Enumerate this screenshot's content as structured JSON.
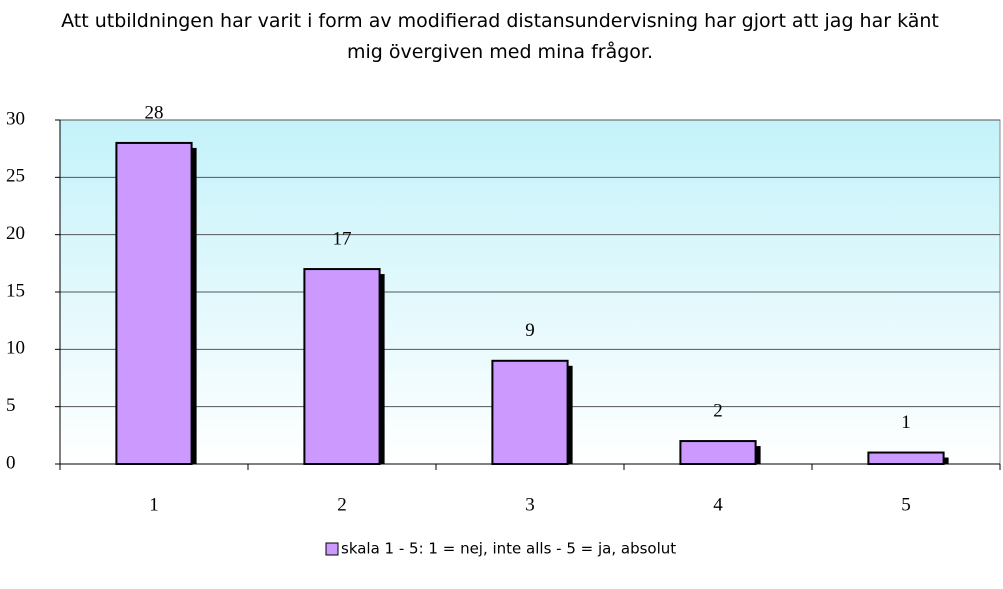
{
  "chart_data": {
    "type": "bar",
    "title": "Att utbildningen har varit i form av modifierad distansundervisning har gjort att jag har känt mig övergiven med mina frågor.",
    "categories": [
      "1",
      "2",
      "3",
      "4",
      "5"
    ],
    "series": [
      {
        "name": "skala 1 - 5: 1 = nej, inte alls - 5 = ja, absolut",
        "color": "#cc99ff",
        "values": [
          28,
          17,
          9,
          2,
          1
        ]
      }
    ],
    "ylim": [
      0,
      30
    ],
    "yticks": [
      0,
      5,
      10,
      15,
      20,
      25,
      30
    ],
    "grid": true,
    "legend": "bottom"
  }
}
